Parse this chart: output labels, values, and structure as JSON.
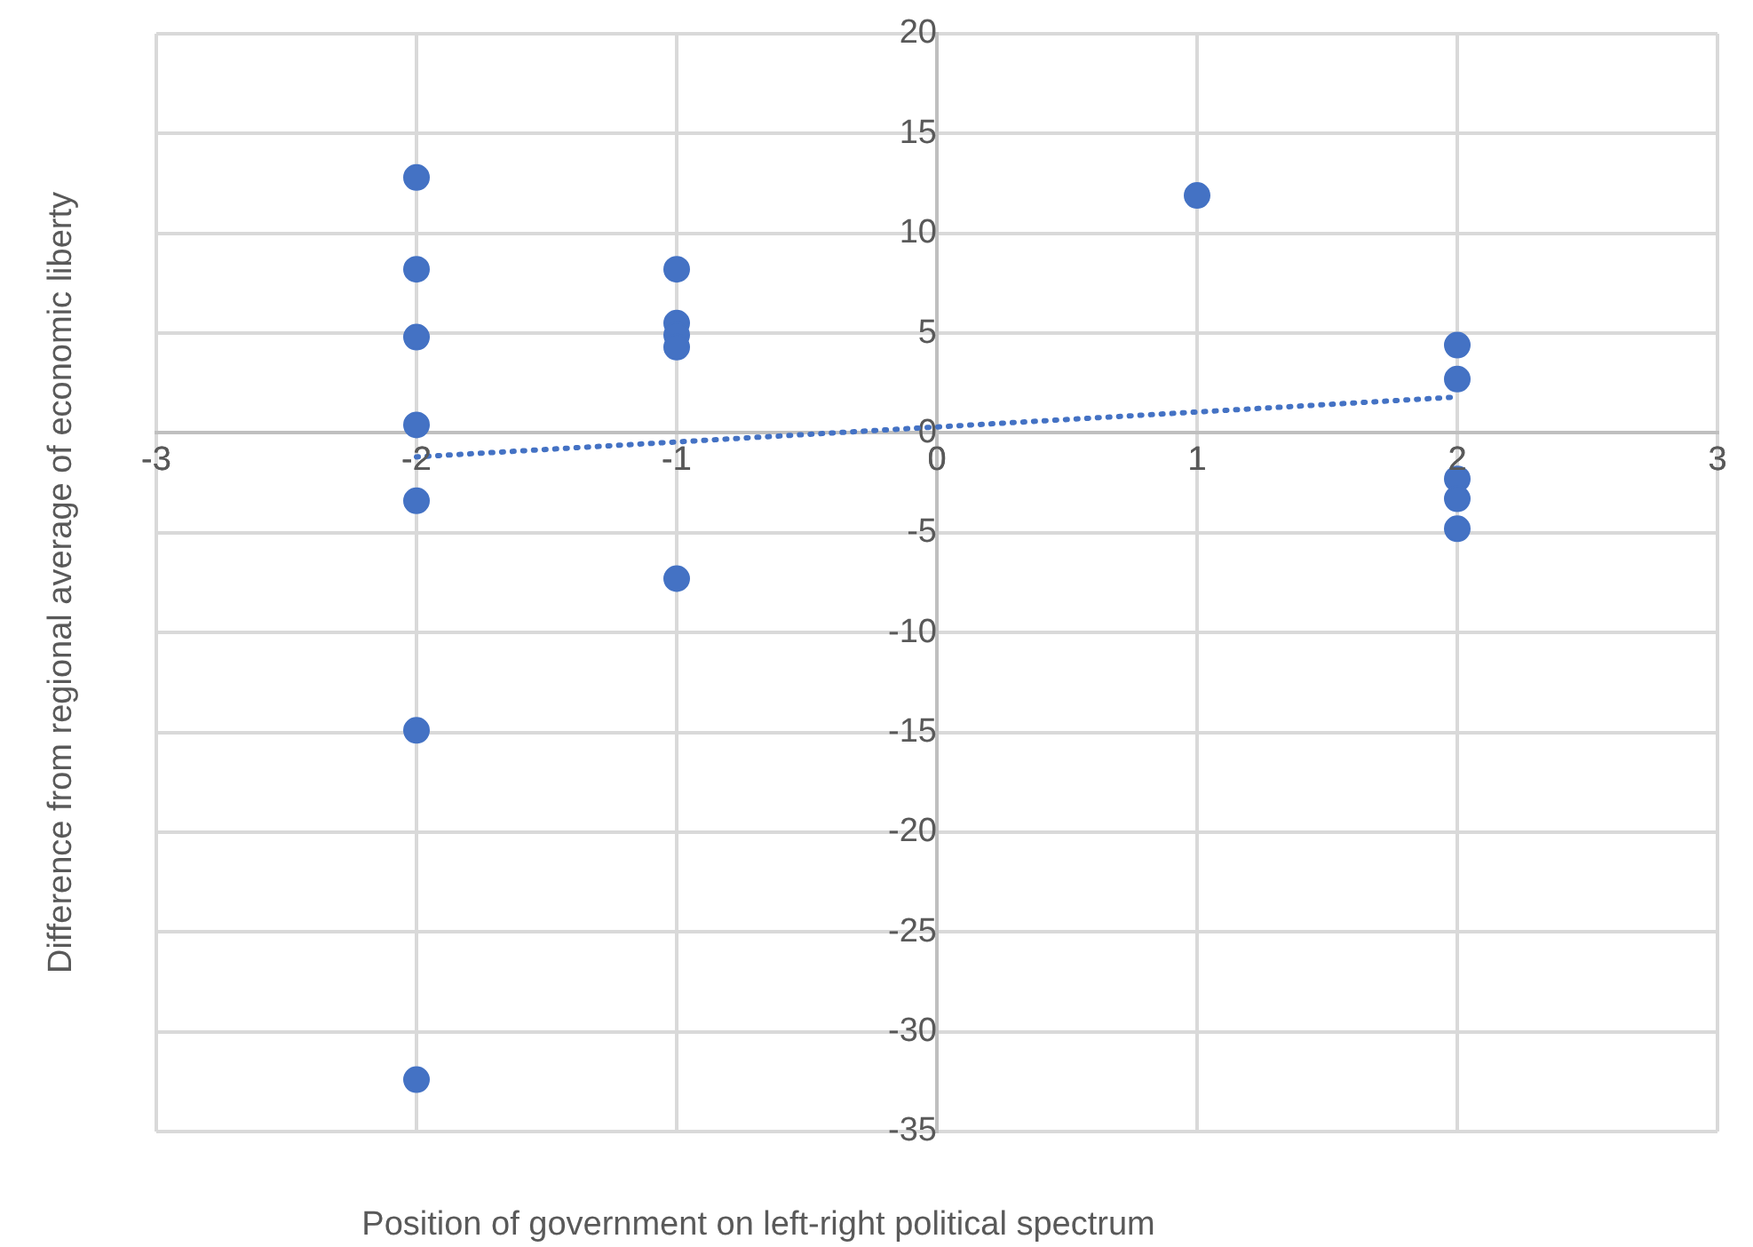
{
  "chart_data": {
    "type": "scatter",
    "xlabel": "Position of government on left-right political spectrum",
    "ylabel": "Difference from regional average of economic liberty",
    "series": [
      {
        "type": "scatter",
        "color": "#4472c4",
        "marker": "circle",
        "x": [
          -2,
          -2,
          -2,
          -2,
          -2,
          -2,
          -2,
          -1,
          -1,
          -1,
          -1,
          -1,
          1,
          2,
          2,
          2,
          2,
          2
        ],
        "values": [
          12.8,
          8.2,
          4.8,
          0.4,
          -3.4,
          -14.9,
          -32.4,
          8.2,
          5.5,
          4.9,
          4.3,
          -7.3,
          11.9,
          4.4,
          2.7,
          -2.3,
          -3.3,
          -4.8
        ]
      },
      {
        "type": "line",
        "color": "#4472c4",
        "marker": "none",
        "line_style": "dotted",
        "x": [
          -2,
          2
        ],
        "values": [
          -1.2,
          1.8
        ]
      }
    ],
    "xlim": [
      -3,
      3
    ],
    "xticks": [
      -3,
      -2,
      -1,
      0,
      1,
      2,
      3
    ],
    "ylim": [
      -35,
      20
    ],
    "yticks": [
      -35,
      -30,
      -25,
      -20,
      -15,
      -10,
      -5,
      0,
      5,
      10,
      15,
      20
    ],
    "grid": true
  }
}
